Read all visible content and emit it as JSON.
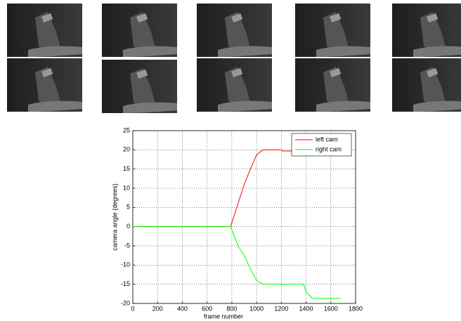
{
  "chart_data": {
    "type": "line",
    "xlabel": "frame number",
    "ylabel": "camera angle (degrees)",
    "x": [
      0,
      790,
      850,
      900,
      950,
      1000,
      1050,
      1200,
      1210,
      1380,
      1400,
      1450,
      1680
    ],
    "series": [
      {
        "name": "left cam",
        "color": "#ff0000",
        "values": [
          0,
          0,
          6,
          11,
          15,
          18.7,
          20,
          20,
          19.7,
          19.7,
          null,
          null,
          null
        ]
      },
      {
        "name": "right cam",
        "color": "#00ff00",
        "values": [
          0,
          0,
          -5,
          -7.5,
          -11,
          -14,
          -15,
          -15,
          -15,
          -15,
          -17,
          -18.7,
          -18.7
        ]
      }
    ],
    "xlim": [
      0,
      1800
    ],
    "xticks": [
      0,
      200,
      400,
      600,
      800,
      1000,
      1200,
      1400,
      1600,
      1800
    ],
    "ylim": [
      -20,
      25
    ],
    "yticks": [
      -20,
      -15,
      -10,
      -5,
      0,
      5,
      10,
      15,
      20,
      25
    ],
    "grid": true,
    "legend": "top-right"
  }
}
